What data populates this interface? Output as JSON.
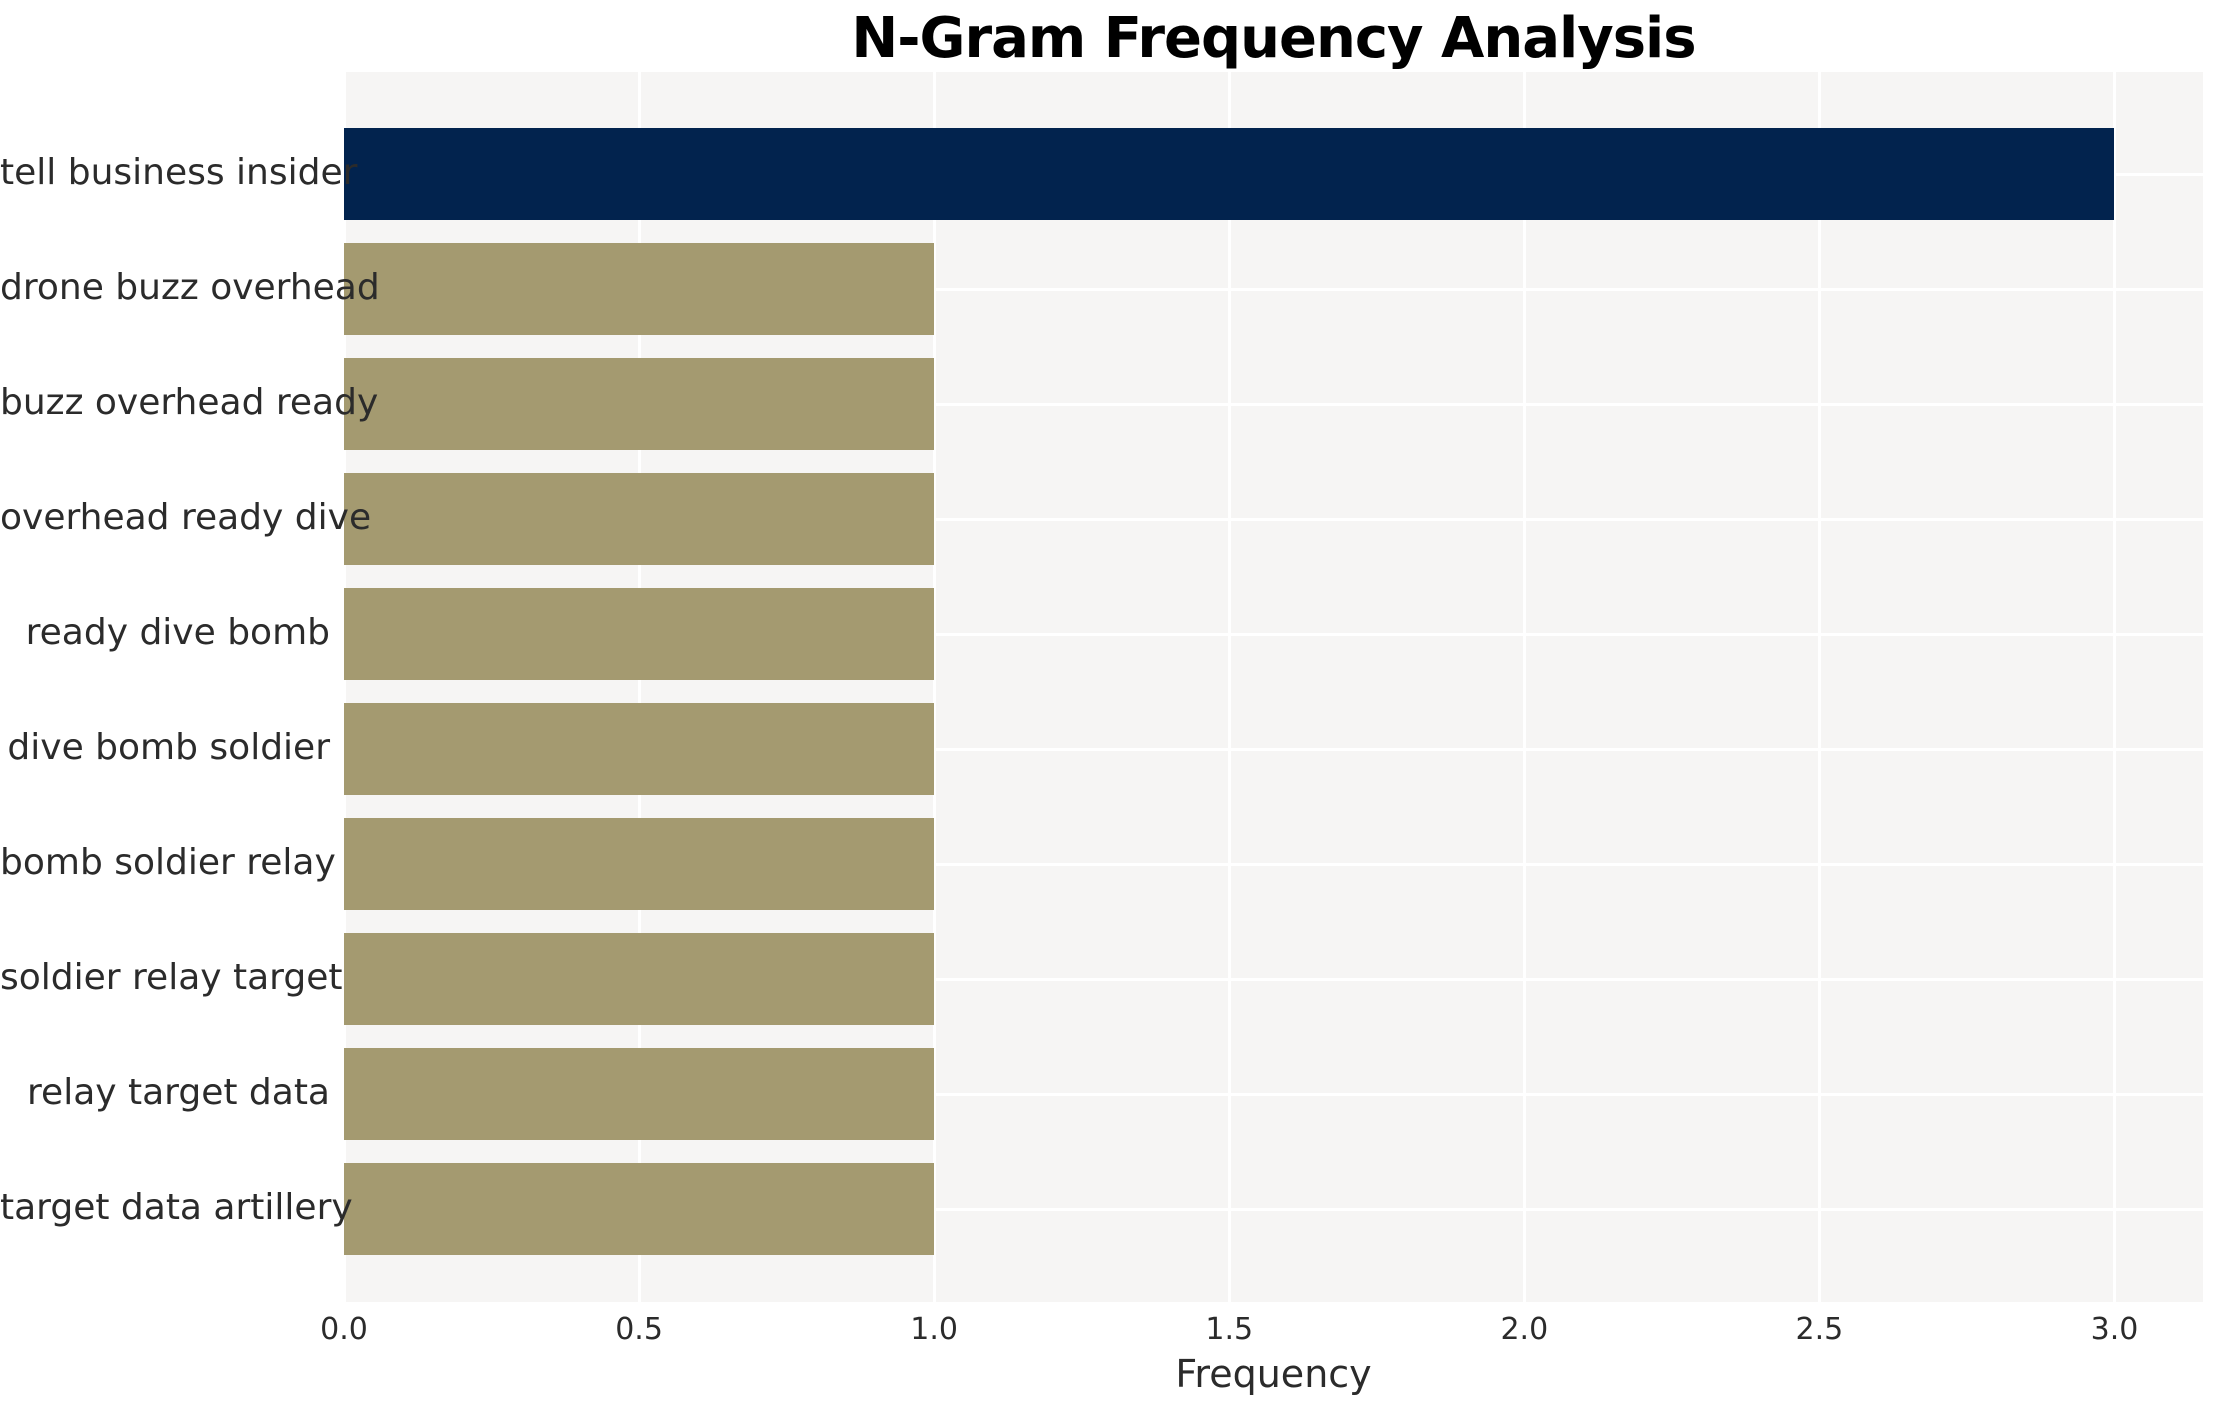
{
  "page": {
    "background_color": "#ffffff"
  },
  "chart_data": {
    "type": "bar",
    "orientation": "horizontal",
    "title": "N-Gram Frequency Analysis",
    "xlabel": "Frequency",
    "ylabel": "",
    "categories": [
      "tell business insider",
      "drone buzz overhead",
      "buzz overhead ready",
      "overhead ready dive",
      "ready dive bomb",
      "dive bomb soldier",
      "bomb soldier relay",
      "soldier relay target",
      "relay target data",
      "target data artillery"
    ],
    "values": [
      3,
      1,
      1,
      1,
      1,
      1,
      1,
      1,
      1,
      1
    ],
    "highlight_index": 0,
    "xlim": [
      0,
      3.15
    ],
    "xticks": [
      0,
      0.5,
      1,
      1.5,
      2,
      2.5,
      3
    ],
    "xtick_labels": [
      "0.0",
      "0.5",
      "1.0",
      "1.5",
      "2.0",
      "2.5",
      "3.0"
    ],
    "grid": true,
    "legend": null,
    "colors": {
      "highlight_bar": "#02234e",
      "default_bar": "#a49a70",
      "plot_background": "#f6f5f4",
      "gridline": "#ffffff",
      "tick_text": "#2b2b2b",
      "title_text": "#000000"
    }
  }
}
